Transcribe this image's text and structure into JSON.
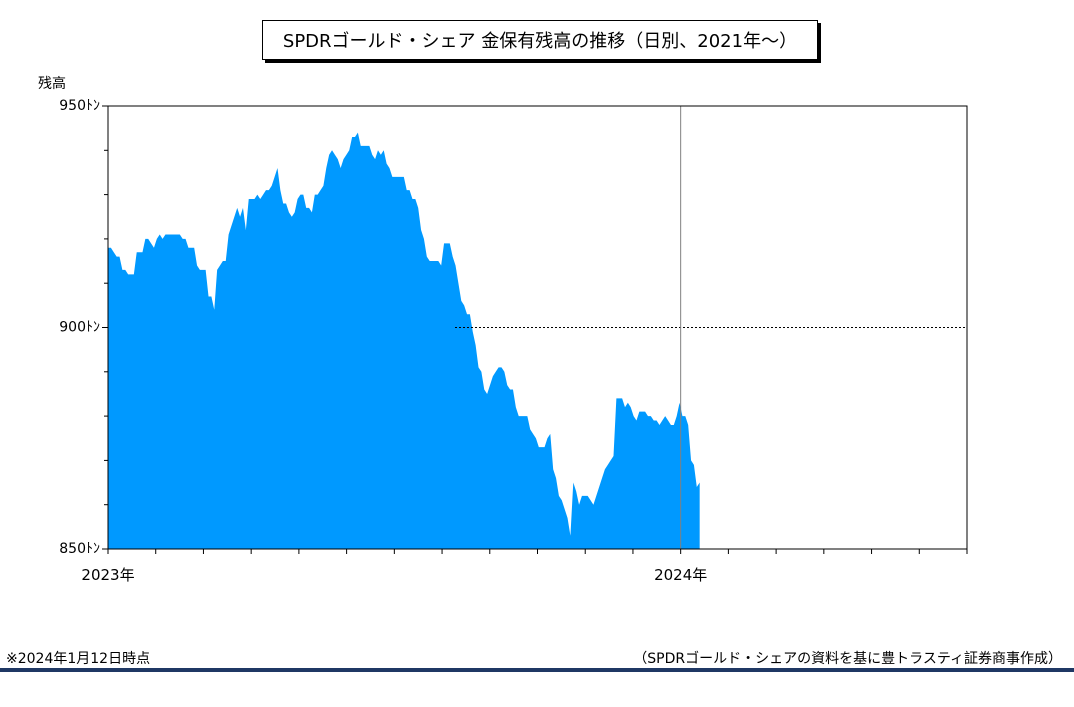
{
  "chart_data": {
    "type": "area",
    "title": "SPDRゴールド・シェア 金保有残高の推移（日別、2021年～）",
    "ylabel": "残高",
    "ylim": [
      850,
      950
    ],
    "y_ticks": [
      "950ﾄﾝ",
      "900ﾄﾝ",
      "850ﾄﾝ"
    ],
    "y_tick_values": [
      950,
      900,
      850
    ],
    "x_tick_labels": [
      "2023年",
      "2024年"
    ],
    "x_range_months": [
      0,
      18
    ],
    "reference_line": 900,
    "fill_color": "#0099ff",
    "series": [
      {
        "values": [
          918,
          918,
          917,
          916,
          916,
          913,
          913,
          912,
          912,
          912,
          917,
          917,
          917,
          920,
          920,
          919,
          918,
          920,
          921,
          920,
          921,
          921,
          921,
          921,
          921,
          921,
          920,
          920,
          918,
          918,
          918,
          914,
          913,
          913,
          913,
          907,
          907,
          904,
          913,
          914,
          915,
          915,
          921,
          923,
          925,
          927,
          925,
          927,
          922,
          929,
          929,
          929,
          930,
          929,
          930,
          931,
          931,
          932,
          934,
          936,
          931,
          928,
          928,
          926,
          925,
          926,
          929,
          930,
          930,
          927,
          927,
          926,
          930,
          930,
          931,
          932,
          936,
          939,
          940,
          939,
          938,
          936,
          938,
          939,
          940,
          943,
          943,
          944,
          941,
          941,
          941,
          941,
          939,
          938,
          940,
          939,
          940,
          937,
          936,
          934,
          934,
          934,
          934,
          934,
          931,
          931,
          929,
          929,
          927,
          922,
          920,
          916,
          915,
          915,
          915,
          915,
          914,
          919,
          919,
          919,
          916,
          914,
          910,
          906,
          905,
          903,
          903,
          899,
          896,
          891,
          890,
          886,
          885,
          887,
          889,
          890,
          891,
          891,
          890,
          887,
          886,
          886,
          882,
          880,
          880,
          880,
          880,
          877,
          876,
          875,
          873,
          873,
          873,
          875,
          876,
          868,
          866,
          862,
          861,
          859,
          857,
          853,
          865,
          863,
          860,
          862,
          862,
          862,
          861,
          860,
          862,
          864,
          866,
          868,
          869,
          870,
          871,
          884,
          884,
          884,
          882,
          883,
          882,
          880,
          879,
          881,
          881,
          881,
          880,
          880,
          879,
          879,
          878,
          879,
          880,
          879,
          878,
          878,
          880,
          883,
          880,
          880,
          878,
          870,
          869,
          864,
          865
        ]
      }
    ],
    "notes": {
      "as_of": "※2024年1月12日時点",
      "source": "（SPDRゴールド・シェアの資料を基に豊トラスティ証券商事作成）"
    }
  }
}
